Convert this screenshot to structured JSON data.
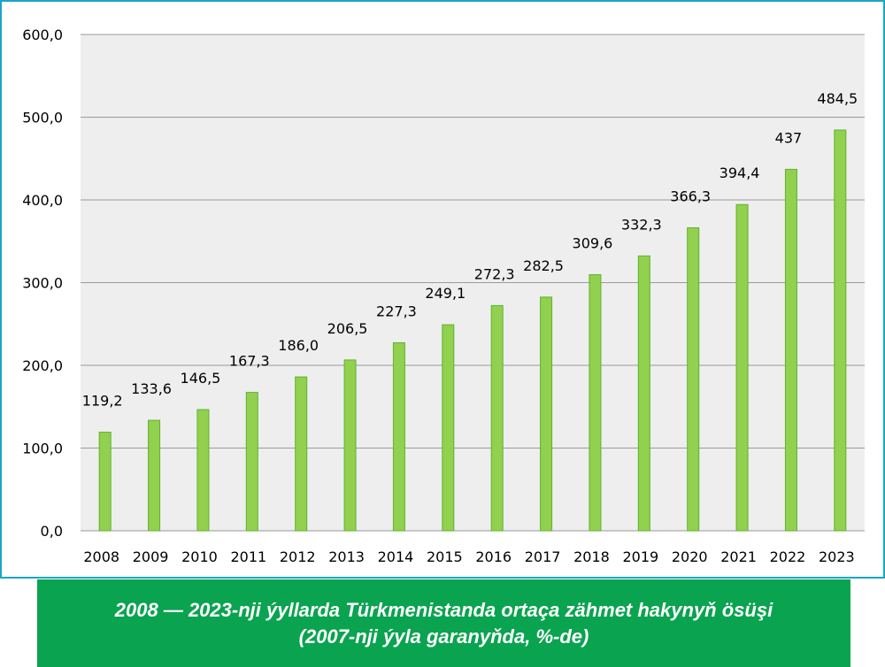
{
  "caption": {
    "line1": "2008 — 2023-nji ýyllarda Türkmenistanda ortaça zähmet hakynyň ösüşi",
    "line2": "(2007-nji ýyla garanyňda, %-de)"
  },
  "colors": {
    "frame_border": "#1aa5c8",
    "plot_background": "#eeeeee",
    "gridline": "#9a9a9a",
    "bar_fill": "#92d050",
    "bar_stroke": "#5fb32e",
    "caption_background": "#0aa34f",
    "caption_text": "#ffffff"
  },
  "chart_data": {
    "type": "bar",
    "title": "",
    "xlabel": "",
    "ylabel": "",
    "ylim": [
      0,
      600
    ],
    "y_ticks": [
      "0,0",
      "100,0",
      "200,0",
      "300,0",
      "400,0",
      "500,0",
      "600,0"
    ],
    "y_tick_values": [
      0,
      100,
      200,
      300,
      400,
      500,
      600
    ],
    "grid": true,
    "legend": "none",
    "categories": [
      "2008",
      "2009",
      "2010",
      "2011",
      "2012",
      "2013",
      "2014",
      "2015",
      "2016",
      "2017",
      "2018",
      "2019",
      "2020",
      "2021",
      "2022",
      "2023"
    ],
    "values": [
      119.2,
      133.6,
      146.5,
      167.3,
      186.0,
      206.5,
      227.3,
      249.1,
      272.3,
      282.5,
      309.6,
      332.3,
      366.3,
      394.4,
      437,
      484.5
    ],
    "value_labels": [
      "119,2",
      "133,6",
      "146,5",
      "167,3",
      "186,0",
      "206,5",
      "227,3",
      "249,1",
      "272,3",
      "282,5",
      "309,6",
      "332,3",
      "366,3",
      "394,4",
      "437",
      "484,5"
    ]
  }
}
